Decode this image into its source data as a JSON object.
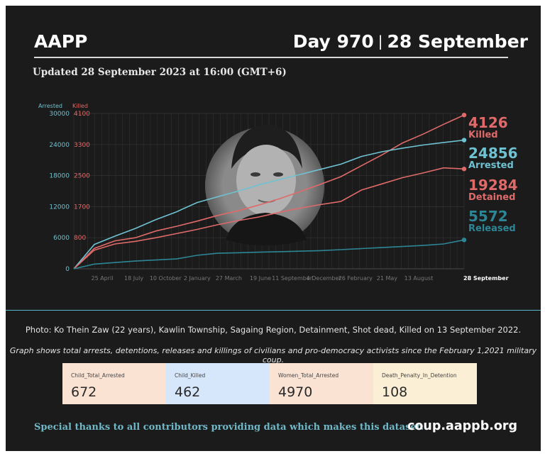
{
  "header": {
    "brand": "AAPP",
    "day": "Day 970",
    "date": "28 September",
    "updated": "Updated 28 September 2023 at 16:00 (GMT+6)"
  },
  "chart_data": {
    "type": "line",
    "axis_left": {
      "arrested_label": "Arrested",
      "killed_label": "Killed",
      "arrested_ticks": [
        "30000",
        "24000",
        "18000",
        "12000",
        "6000",
        "0"
      ],
      "killed_ticks": [
        "4100",
        "3300",
        "2500",
        "1700",
        "800"
      ],
      "arrested_range": [
        0,
        30000
      ]
    },
    "x_ticks": [
      "25 April",
      "18 July",
      "10 October",
      "2 January",
      "27 March",
      "19 June",
      "11 September",
      "4 December",
      "26 February",
      "21 May",
      "13 August"
    ],
    "x_end_label": "28 September",
    "grid": true,
    "series": [
      {
        "name": "Killed",
        "last_value": "4126",
        "color": "#e06a6a",
        "values": [
          0,
          3950,
          5400,
          6000,
          7300,
          8200,
          9200,
          10300,
          11200,
          12300,
          13500,
          14900,
          16300,
          17800,
          19900,
          22000,
          24300,
          26000,
          27900,
          29700
        ]
      },
      {
        "name": "Arrested",
        "last_value": "24856",
        "color": "#6ec2d1",
        "values": [
          0,
          4700,
          6300,
          7800,
          9500,
          11000,
          12800,
          13900,
          15000,
          16200,
          17200,
          18200,
          19200,
          20200,
          21700,
          22600,
          23300,
          23900,
          24400,
          24856
        ]
      },
      {
        "name": "Detained",
        "last_value": "19284",
        "color": "#e06a6a",
        "values": [
          0,
          3600,
          4800,
          5300,
          6000,
          6800,
          7600,
          8500,
          9300,
          10000,
          10900,
          11700,
          12400,
          13000,
          15200,
          16400,
          17600,
          18500,
          19500,
          19284
        ]
      },
      {
        "name": "Released",
        "last_value": "5572",
        "color": "#2d8696",
        "values": [
          0,
          900,
          1200,
          1500,
          1700,
          1900,
          2600,
          3000,
          3100,
          3200,
          3300,
          3400,
          3500,
          3700,
          3900,
          4100,
          4300,
          4500,
          4800,
          5572
        ]
      }
    ]
  },
  "photo": {
    "caption": "Photo: Ko Thein Zaw (22 years), Kawlin Township, Sagaing Region, Detainment, Shot dead, Killed on 13 September 2022."
  },
  "note": "Graph shows total arrests, detentions, releases and killings of civilians and pro-democracy activists since the February 1,2021 military coup.",
  "stats": [
    {
      "label": "Child_Total_Arrested",
      "value": "672",
      "bg": "#fbe3d4"
    },
    {
      "label": "Child_Killed",
      "value": "462",
      "bg": "#d6e6fb"
    },
    {
      "label": "Women_Total_Arrested",
      "value": "4970",
      "bg": "#fbe3d4"
    },
    {
      "label": "Death_Penalty_In_Detention",
      "value": "108",
      "bg": "#fbefd6"
    }
  ],
  "footer": {
    "thanks": "Special thanks to all contributors providing data which makes this dataset.",
    "site": "coup.aappb.org"
  }
}
